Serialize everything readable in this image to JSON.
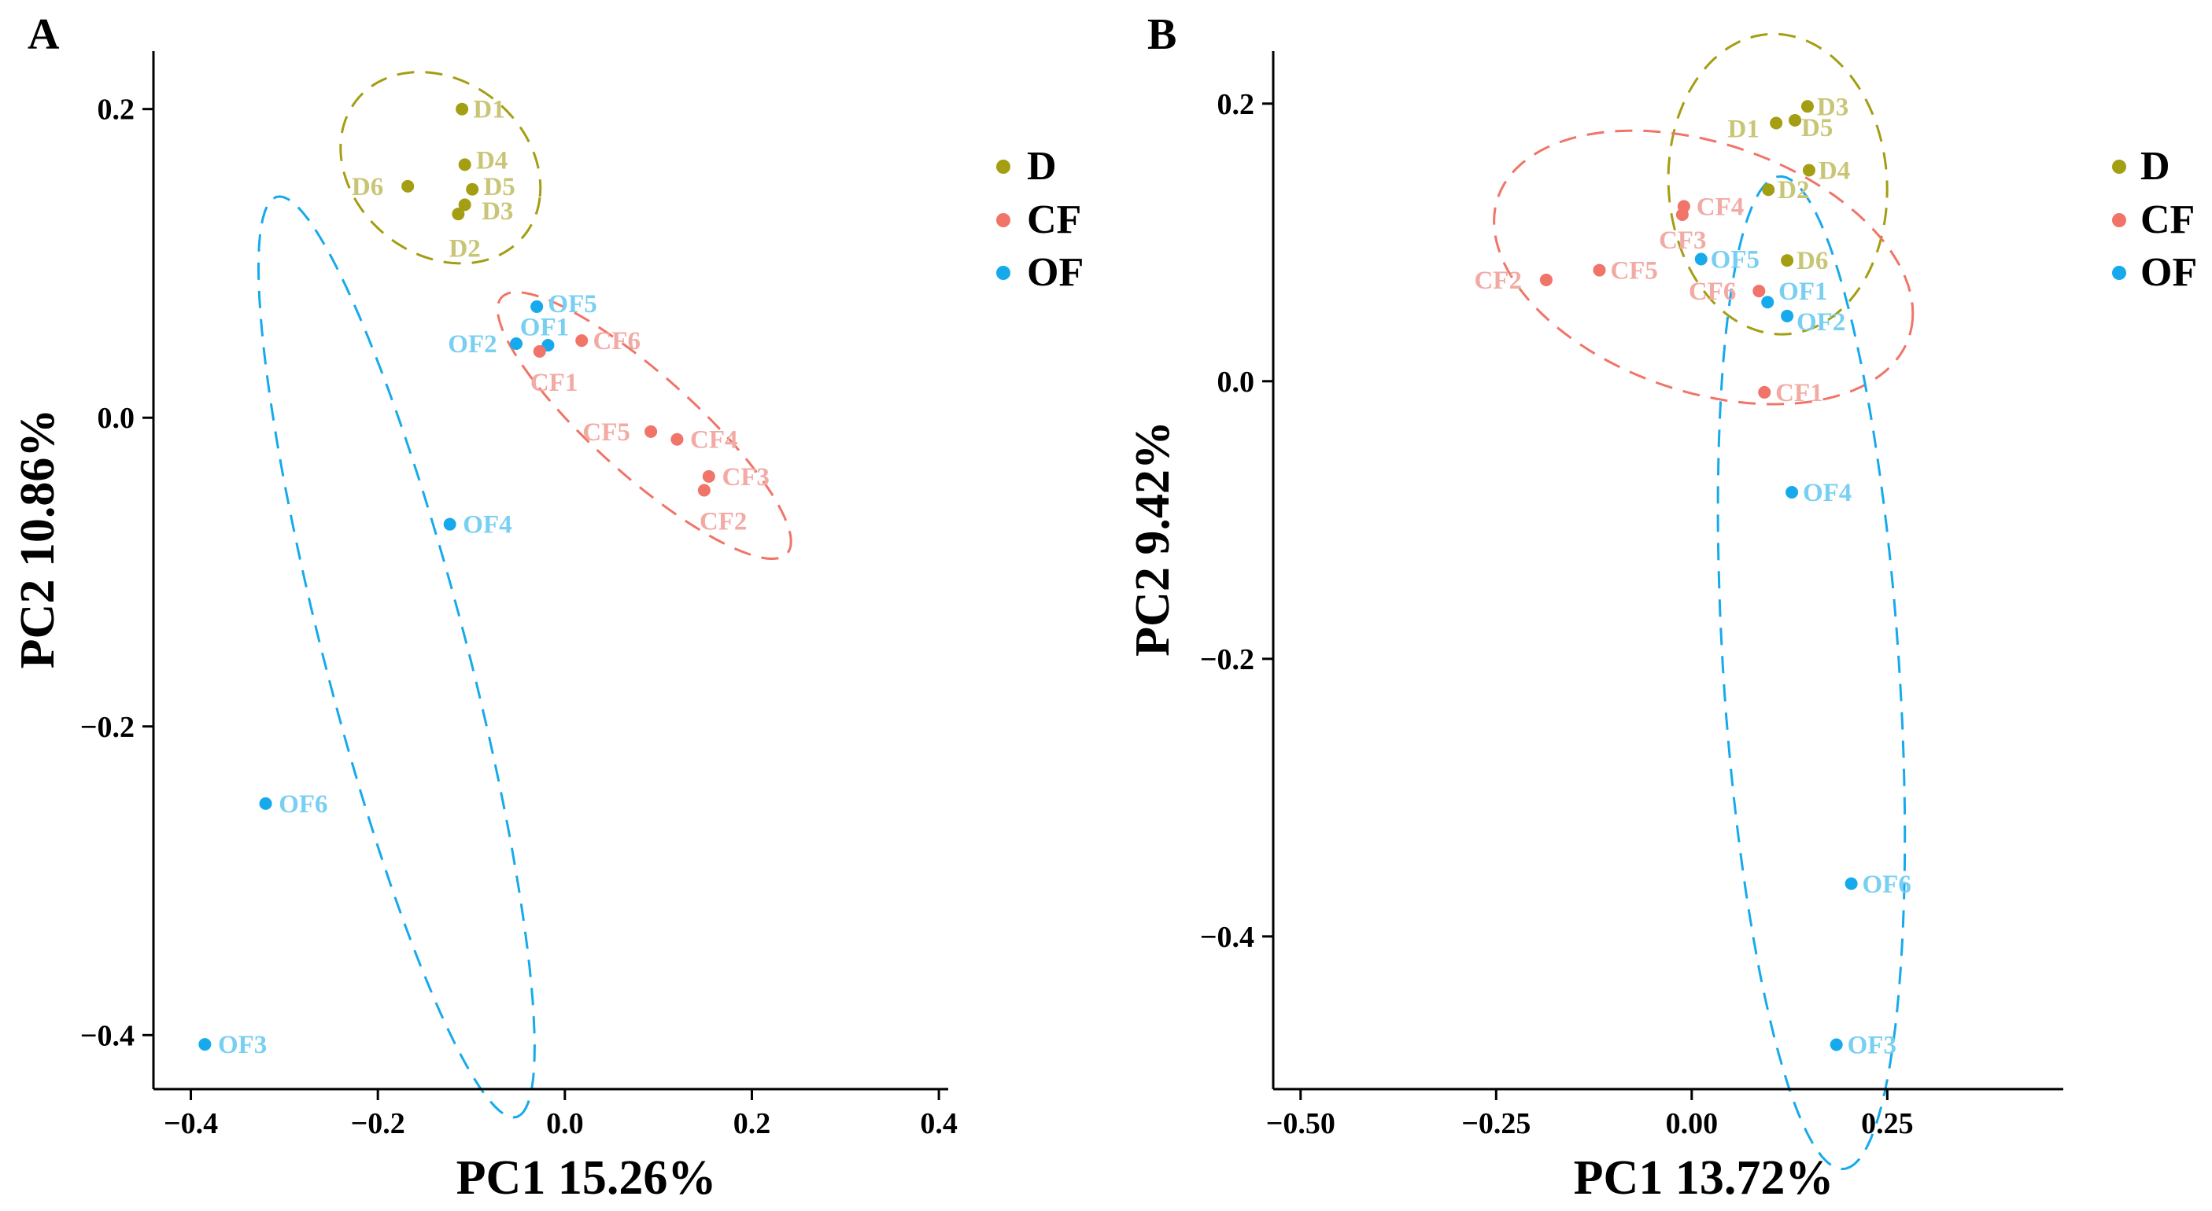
{
  "colors": {
    "D": "#a39e12",
    "CF": "#f07468",
    "OF": "#16aaec",
    "D_label": "#c9c577",
    "CF_label": "#f2aaa4",
    "OF_label": "#78cff2"
  },
  "legend": [
    {
      "key": "D",
      "label": "D"
    },
    {
      "key": "CF",
      "label": "CF"
    },
    {
      "key": "OF",
      "label": "OF"
    }
  ],
  "chart_data": [
    {
      "panel": "A",
      "type": "scatter",
      "xlabel": "PC1 15.26%",
      "ylabel": "PC2 10.86%",
      "xlim": [
        -0.44,
        0.41
      ],
      "ylim": [
        -0.435,
        0.235
      ],
      "xticks": [
        -0.4,
        -0.2,
        0.0,
        0.2,
        0.4
      ],
      "xtick_labels": [
        "−0.4",
        "−0.2",
        "0.0",
        "0.2",
        "0.4"
      ],
      "yticks": [
        0.2,
        0.0,
        -0.2,
        -0.4
      ],
      "ytick_labels": [
        "0.2",
        "0.0",
        "−0.2",
        "−0.4"
      ],
      "points": [
        {
          "label": "D1",
          "group": "D",
          "x": -0.11,
          "y": 0.2,
          "lx": 0.012,
          "ly": 0.0
        },
        {
          "label": "D4",
          "group": "D",
          "x": -0.107,
          "y": 0.164,
          "lx": 0.012,
          "ly": 0.003
        },
        {
          "label": "D5",
          "group": "D",
          "x": -0.099,
          "y": 0.148,
          "lx": 0.012,
          "ly": 0.002
        },
        {
          "label": "D3",
          "group": "D",
          "x": -0.107,
          "y": 0.138,
          "lx": 0.018,
          "ly": -0.004
        },
        {
          "label": "D2",
          "group": "D",
          "x": -0.114,
          "y": 0.132,
          "lx": -0.01,
          "ly": -0.022
        },
        {
          "label": "D6",
          "group": "D",
          "x": -0.168,
          "y": 0.15,
          "lx": -0.06,
          "ly": 0.0
        },
        {
          "label": "OF5",
          "group": "OF",
          "x": -0.03,
          "y": 0.072,
          "lx": 0.012,
          "ly": 0.002
        },
        {
          "label": "OF1",
          "group": "OF",
          "x": -0.018,
          "y": 0.047,
          "lx": -0.03,
          "ly": 0.012
        },
        {
          "label": "OF2",
          "group": "OF",
          "x": -0.052,
          "y": 0.048,
          "lx": -0.073,
          "ly": 0.0
        },
        {
          "label": "OF4",
          "group": "OF",
          "x": -0.123,
          "y": -0.069,
          "lx": 0.014,
          "ly": 0.0
        },
        {
          "label": "OF6",
          "group": "OF",
          "x": -0.32,
          "y": -0.25,
          "lx": 0.014,
          "ly": 0.0
        },
        {
          "label": "OF3",
          "group": "OF",
          "x": -0.385,
          "y": -0.406,
          "lx": 0.014,
          "ly": 0.0
        },
        {
          "label": "CF6",
          "group": "CF",
          "x": 0.018,
          "y": 0.05,
          "lx": 0.012,
          "ly": 0.0
        },
        {
          "label": "CF1",
          "group": "CF",
          "x": -0.027,
          "y": 0.043,
          "lx": -0.01,
          "ly": -0.02
        },
        {
          "label": "CF5",
          "group": "CF",
          "x": 0.092,
          "y": -0.009,
          "lx": -0.073,
          "ly": 0.0
        },
        {
          "label": "CF4",
          "group": "CF",
          "x": 0.12,
          "y": -0.014,
          "lx": 0.014,
          "ly": 0.0
        },
        {
          "label": "CF3",
          "group": "CF",
          "x": 0.154,
          "y": -0.038,
          "lx": 0.014,
          "ly": 0.0
        },
        {
          "label": "CF2",
          "group": "CF",
          "x": 0.149,
          "y": -0.047,
          "lx": -0.005,
          "ly": -0.02
        }
      ],
      "ellipses": [
        {
          "group": "D",
          "cx": -0.133,
          "cy": 0.162,
          "rx": 0.108,
          "ry": 0.06,
          "angle": -10
        },
        {
          "group": "CF",
          "cx": 0.085,
          "cy": -0.005,
          "rx": 0.175,
          "ry": 0.038,
          "angle": -27
        },
        {
          "group": "OF",
          "cx": -0.18,
          "cy": -0.155,
          "rx": 0.325,
          "ry": 0.072,
          "angle": -66
        }
      ]
    },
    {
      "panel": "B",
      "type": "scatter",
      "xlabel": "PC1 13.72%",
      "ylabel": "PC2 9.42%",
      "xlim": [
        -0.535,
        0.475
      ],
      "ylim": [
        -0.51,
        0.235
      ],
      "xticks": [
        -0.5,
        -0.25,
        0.0,
        0.25
      ],
      "xtick_labels": [
        "−0.50",
        "−0.25",
        "0.00",
        "0.25"
      ],
      "yticks": [
        0.2,
        0.0,
        -0.2,
        -0.4
      ],
      "ytick_labels": [
        "0.2",
        "0.0",
        "−0.2",
        "−0.4"
      ],
      "points": [
        {
          "label": "D3",
          "group": "D",
          "x": 0.148,
          "y": 0.198,
          "lx": 0.012,
          "ly": 0.0
        },
        {
          "label": "D5",
          "group": "D",
          "x": 0.132,
          "y": 0.188,
          "lx": 0.008,
          "ly": -0.005
        },
        {
          "label": "D1",
          "group": "D",
          "x": 0.108,
          "y": 0.186,
          "lx": -0.062,
          "ly": -0.004
        },
        {
          "label": "D4",
          "group": "D",
          "x": 0.15,
          "y": 0.152,
          "lx": 0.012,
          "ly": 0.0
        },
        {
          "label": "D2",
          "group": "D",
          "x": 0.098,
          "y": 0.138,
          "lx": 0.012,
          "ly": 0.0
        },
        {
          "label": "D6",
          "group": "D",
          "x": 0.122,
          "y": 0.087,
          "lx": 0.012,
          "ly": 0.0
        },
        {
          "label": "CF4",
          "group": "CF",
          "x": -0.01,
          "y": 0.126,
          "lx": 0.016,
          "ly": 0.0
        },
        {
          "label": "CF3",
          "group": "CF",
          "x": -0.012,
          "y": 0.12,
          "lx": -0.03,
          "ly": -0.018
        },
        {
          "label": "CF5",
          "group": "CF",
          "x": -0.118,
          "y": 0.08,
          "lx": 0.014,
          "ly": 0.0
        },
        {
          "label": "CF2",
          "group": "CF",
          "x": -0.186,
          "y": 0.073,
          "lx": -0.092,
          "ly": 0.0
        },
        {
          "label": "CF6",
          "group": "CF",
          "x": 0.086,
          "y": 0.065,
          "lx": -0.09,
          "ly": 0.0
        },
        {
          "label": "CF1",
          "group": "CF",
          "x": 0.093,
          "y": -0.008,
          "lx": 0.014,
          "ly": 0.0
        },
        {
          "label": "OF5",
          "group": "OF",
          "x": 0.012,
          "y": 0.088,
          "lx": 0.012,
          "ly": 0.0
        },
        {
          "label": "OF1",
          "group": "OF",
          "x": 0.097,
          "y": 0.057,
          "lx": 0.014,
          "ly": 0.008
        },
        {
          "label": "OF2",
          "group": "OF",
          "x": 0.122,
          "y": 0.047,
          "lx": 0.012,
          "ly": -0.004
        },
        {
          "label": "OF4",
          "group": "OF",
          "x": 0.128,
          "y": -0.08,
          "lx": 0.014,
          "ly": 0.0
        },
        {
          "label": "OF6",
          "group": "OF",
          "x": 0.204,
          "y": -0.362,
          "lx": 0.014,
          "ly": 0.0
        },
        {
          "label": "OF3",
          "group": "OF",
          "x": 0.185,
          "y": -0.478,
          "lx": 0.014,
          "ly": 0.0
        }
      ],
      "ellipses": [
        {
          "group": "D",
          "cx": 0.11,
          "cy": 0.142,
          "rx": 0.14,
          "ry": 0.108,
          "angle": -4
        },
        {
          "group": "CF",
          "cx": 0.015,
          "cy": 0.082,
          "rx": 0.27,
          "ry": 0.092,
          "angle": -8
        },
        {
          "group": "OF",
          "cx": 0.153,
          "cy": -0.21,
          "rx": 0.36,
          "ry": 0.112,
          "angle": -83
        }
      ]
    }
  ]
}
